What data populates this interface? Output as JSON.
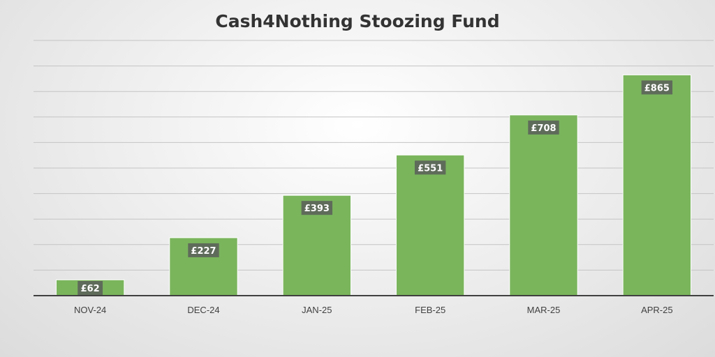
{
  "chart_data": {
    "type": "bar",
    "title": "Cash4Nothing Stoozing Fund",
    "xlabel": "",
    "ylabel": "",
    "categories": [
      "NOV-24",
      "DEC-24",
      "JAN-25",
      "FEB-25",
      "MAR-25",
      "APR-25"
    ],
    "values": [
      62,
      227,
      393,
      551,
      708,
      865
    ],
    "data_labels": [
      "£62",
      "£227",
      "£393",
      "£551",
      "£708",
      "£865"
    ],
    "ylim": [
      0,
      1000
    ],
    "y_axis_labels_visible": false,
    "grid": true,
    "legend": "none",
    "bar_color": "#7ab55c",
    "label_box_color": "#5f6b5a"
  }
}
